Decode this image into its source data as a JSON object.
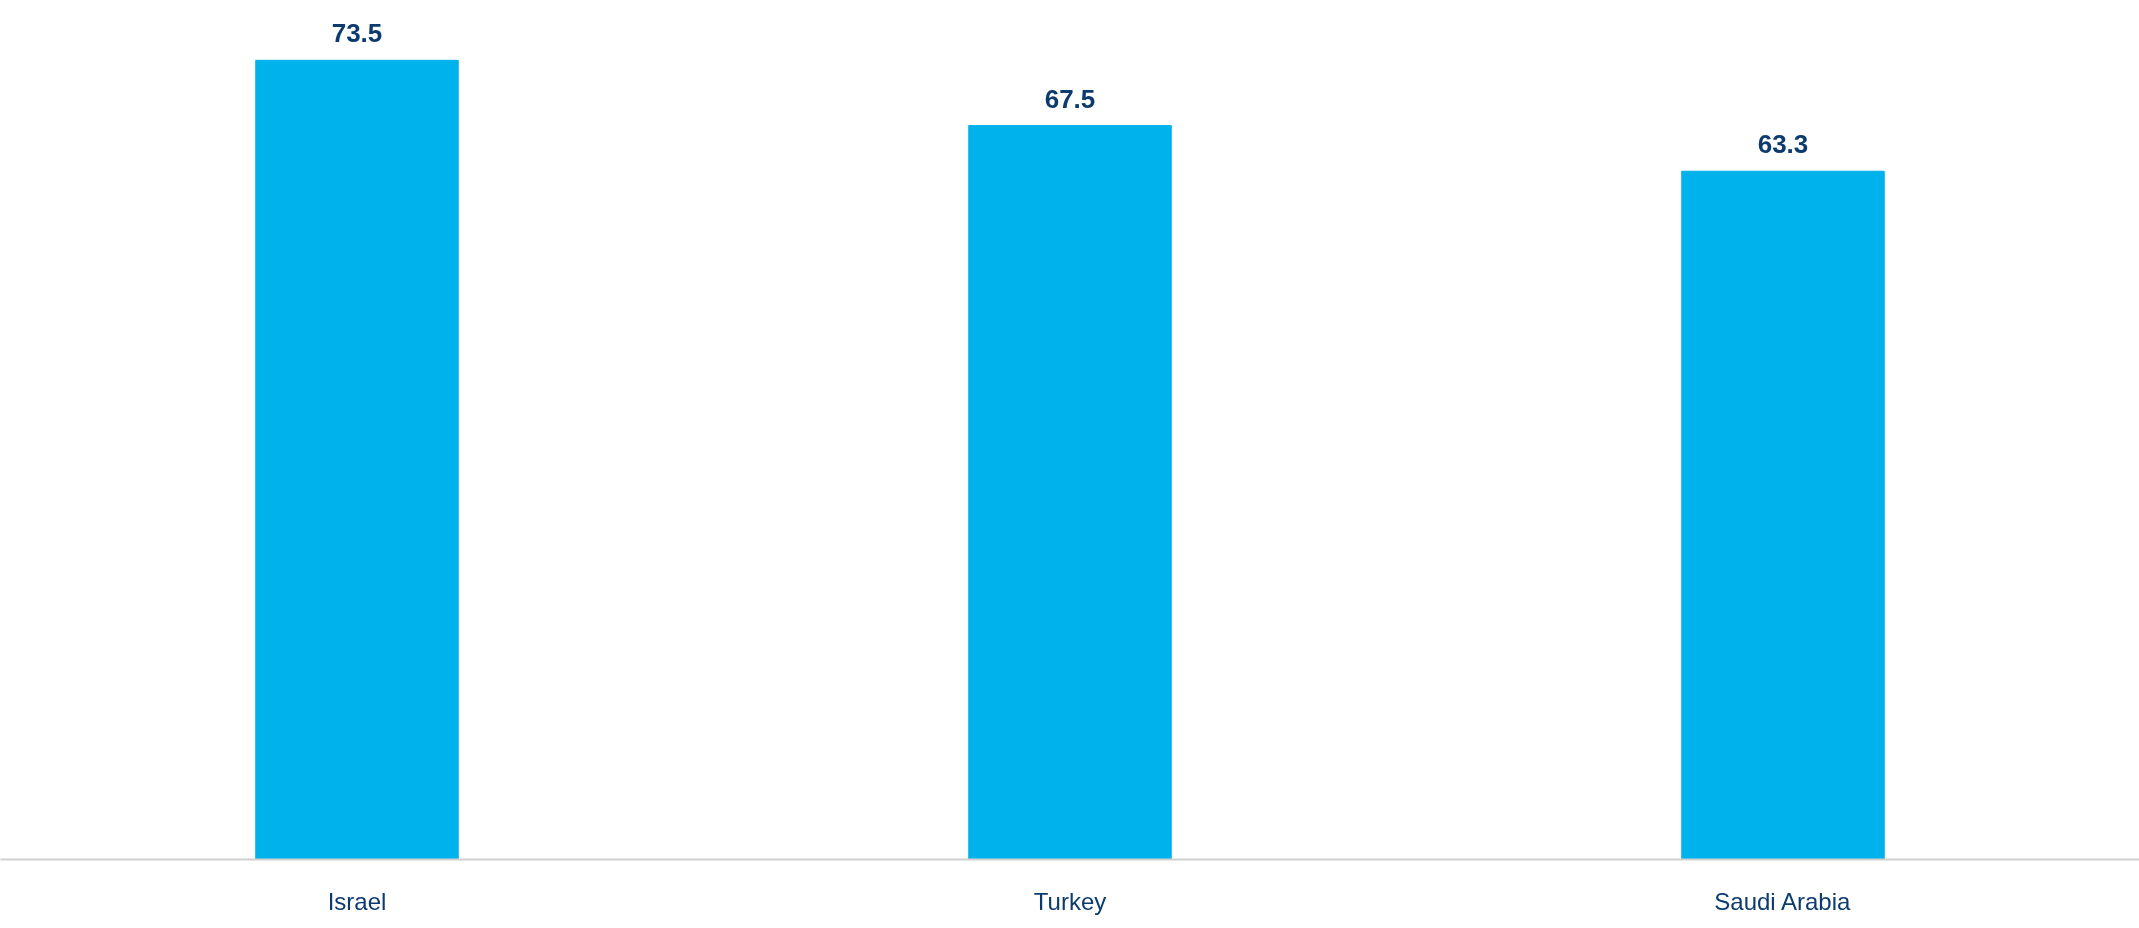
{
  "chart_data": {
    "type": "bar",
    "categories": [
      "Israel",
      "Turkey",
      "Saudi Arabia"
    ],
    "values": [
      73.5,
      67.5,
      63.3
    ],
    "color": "#00b2eb",
    "data_labels": true
  }
}
